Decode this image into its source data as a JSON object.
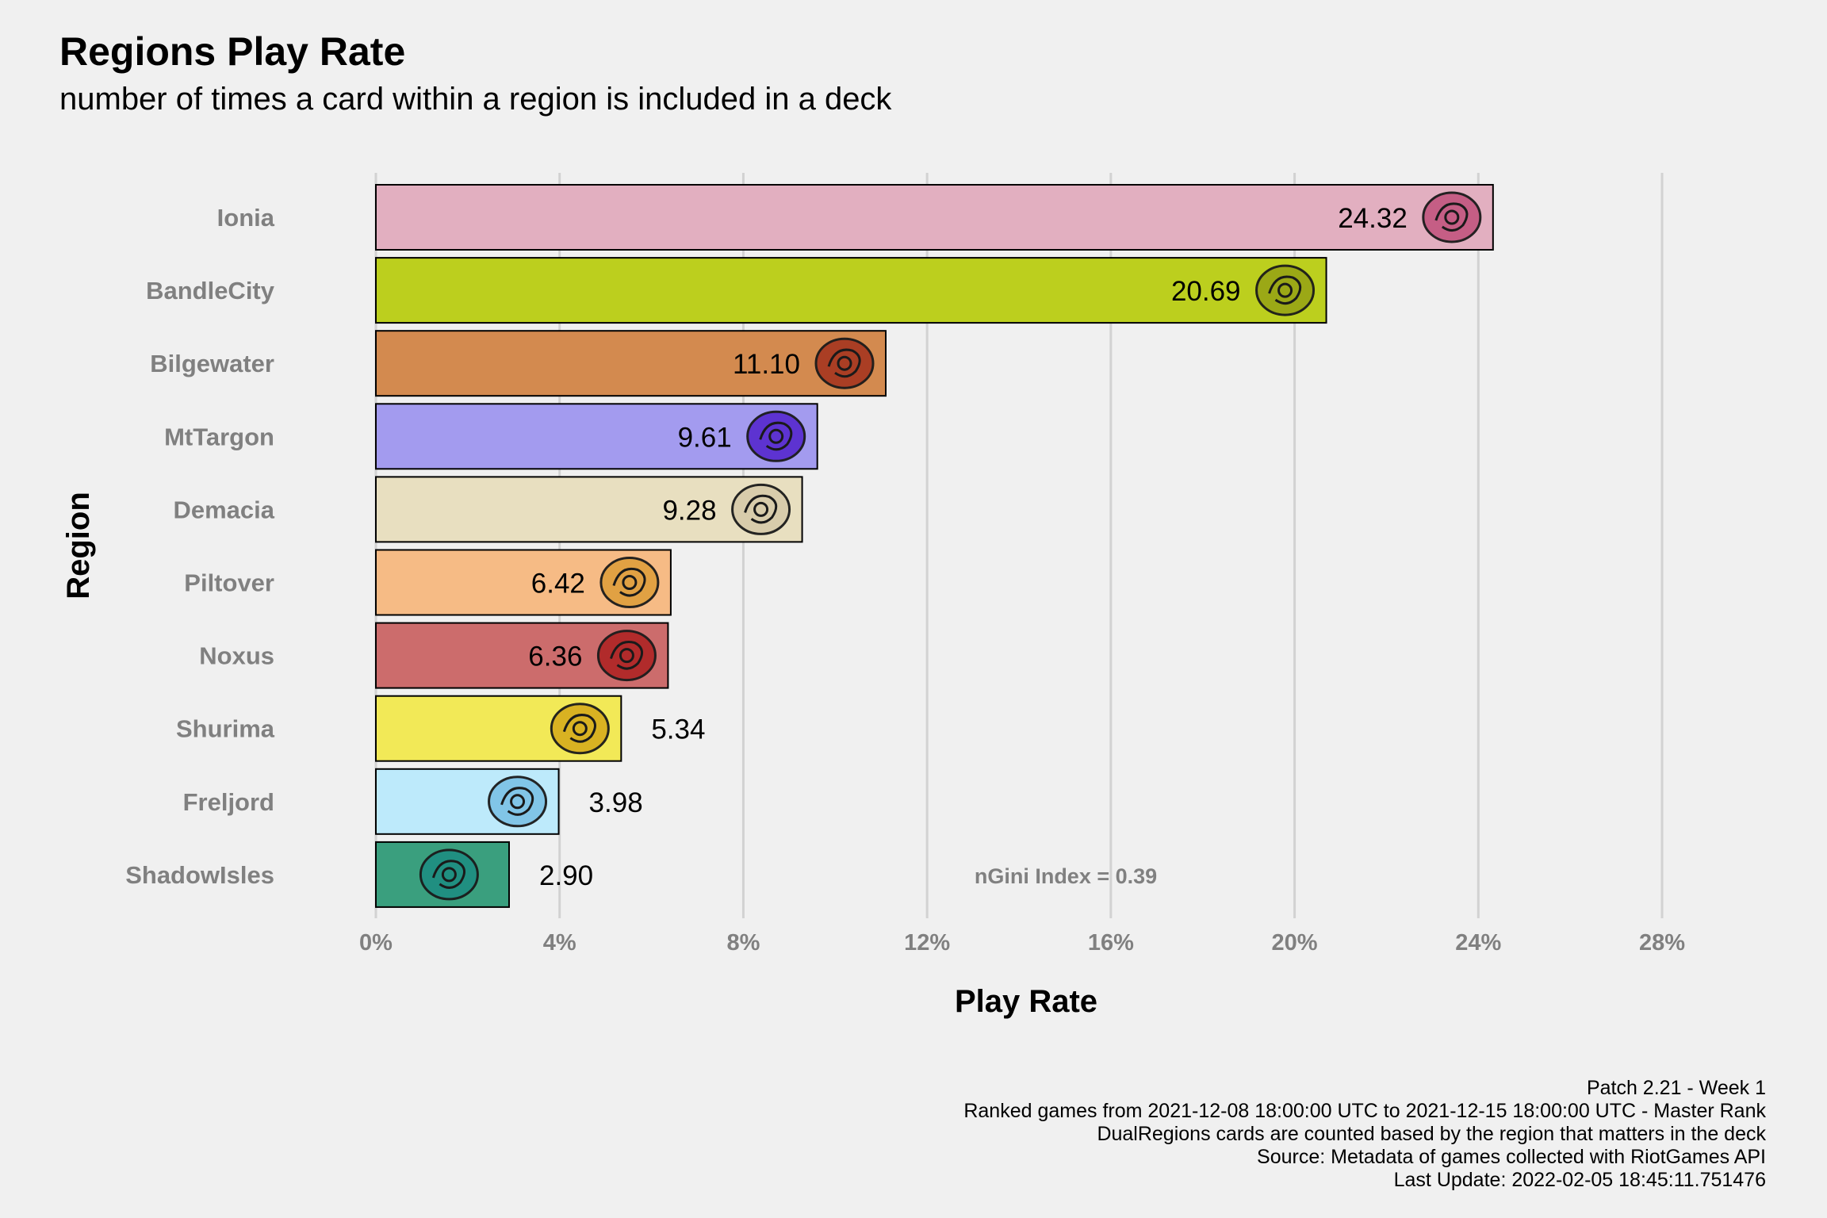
{
  "chart_data": {
    "type": "bar",
    "orientation": "horizontal",
    "title": "Regions Play Rate",
    "subtitle": "number of times a card within a region is included in a deck",
    "xlabel": "Play Rate",
    "ylabel": "Region",
    "xlim": [
      0,
      28
    ],
    "x_ticks": [
      0,
      4,
      8,
      12,
      16,
      20,
      24,
      28
    ],
    "x_tick_labels": [
      "0%",
      "4%",
      "8%",
      "12%",
      "16%",
      "20%",
      "24%",
      "28%"
    ],
    "grid": "vertical",
    "categories": [
      "Ionia",
      "BandleCity",
      "Bilgewater",
      "MtTargon",
      "Demacia",
      "Piltover",
      "Noxus",
      "Shurima",
      "Freljord",
      "ShadowIsles"
    ],
    "values": [
      24.32,
      20.69,
      11.1,
      9.61,
      9.28,
      6.42,
      6.36,
      5.34,
      3.98,
      2.9
    ],
    "value_labels": [
      "24.32",
      "20.69",
      "11.10",
      "9.61",
      "9.28",
      "6.42",
      "6.36",
      "5.34",
      "3.98",
      "2.90"
    ],
    "colors": [
      "#e2afc0",
      "#bccf1e",
      "#d38a4f",
      "#a39bef",
      "#e8dfc0",
      "#f6bb85",
      "#cc6c6c",
      "#f2e957",
      "#bdeafb",
      "#3a9f7e"
    ],
    "icon_colors": [
      "#c45a82",
      "#9aa616",
      "#a83a22",
      "#5a2ed0",
      "#d8ccaa",
      "#e0a040",
      "#b02828",
      "#d8b020",
      "#7ec4e6",
      "#1f8f82"
    ],
    "icons": [
      "ionia-icon",
      "bandlecity-icon",
      "bilgewater-icon",
      "mttargon-icon",
      "demacia-icon",
      "piltover-icon",
      "noxus-icon",
      "shurima-icon",
      "freljord-icon",
      "shadowisles-icon"
    ],
    "annotation": "nGini Index = 0.39",
    "caption_lines": [
      "Patch 2.21 - Week 1",
      "Ranked games from 2021-12-08 18:00:00 UTC to 2021-12-15 18:00:00 UTC - Master Rank",
      "DualRegions cards are counted based by the region that matters in the deck",
      "Source: Metadata of games collected with RiotGames API",
      "Last Update: 2022-02-05 18:45:11.751476"
    ]
  }
}
